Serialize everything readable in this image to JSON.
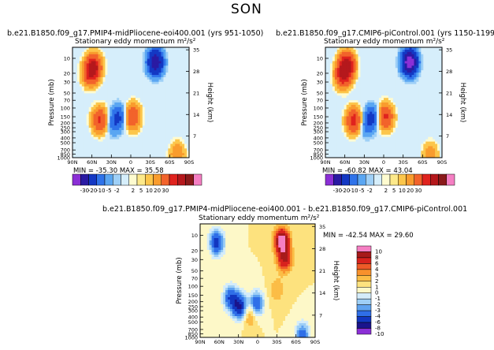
{
  "title": "SON",
  "colors": {
    "scale_abs": [
      "#8b2fd6",
      "#2a1aa3",
      "#1338c4",
      "#2f73ea",
      "#5aa6f2",
      "#9fd0f7",
      "#d6eefb",
      "#fefbd0",
      "#fde98a",
      "#fcc64b",
      "#f99c2e",
      "#f2632b",
      "#e0231e",
      "#b5181c",
      "#8a1a1a",
      "#f57fc3"
    ],
    "scale_diff": [
      "#8b2fd6",
      "#1a148c",
      "#1237c0",
      "#2f6fe8",
      "#5fa3f0",
      "#9ecff6",
      "#d4ecfa",
      "#fdf8c8",
      "#fde27e",
      "#fbbd46",
      "#f8912c",
      "#ee5a28",
      "#d8221e",
      "#a71a1a",
      "#f57fc3"
    ]
  },
  "chart_data": [
    {
      "type": "heatmap",
      "title": "b.e21.B1850.f09_g17.PMIP4-midPliocene-eoi400.001 (yrs 951-1050)",
      "subtitle": "Stationary eddy momentum m²/s²",
      "ylabel": "Pressure (mb)",
      "ylabel_right": "Height (km)",
      "x_ticks": [
        "90N",
        "60N",
        "30N",
        "0",
        "30S",
        "60S",
        "90S"
      ],
      "y_ticks": [
        "10",
        "20",
        "30",
        "50",
        "70",
        "100",
        "150",
        "200",
        "250",
        "300",
        "400",
        "500",
        "700",
        "850",
        "1000"
      ],
      "y_ticks_right": [
        "35",
        "28",
        "21",
        "14",
        "7"
      ],
      "stats": "MIN = -35.30   MAX = 35.58",
      "min": -35.3,
      "max": 35.58,
      "features": [
        {
          "lat": 57,
          "p": 15,
          "value": 30
        },
        {
          "lat": 63,
          "p": 20,
          "value": 20
        },
        {
          "lat": -38,
          "p": 12,
          "value": -30
        },
        {
          "lat": 48,
          "p": 175,
          "value": 22
        },
        {
          "lat": -3,
          "p": 150,
          "value": 20
        },
        {
          "lat": 18,
          "p": 150,
          "value": -10
        },
        {
          "lat": 28,
          "p": 200,
          "value": -6
        },
        {
          "lat": -72,
          "p": 870,
          "value": 10
        }
      ]
    },
    {
      "type": "heatmap",
      "title": "b.e21.B1850.f09_g17.CMIP6-piControl.001 (yrs 1150-1199)",
      "subtitle": "Stationary eddy momentum m²/s²",
      "ylabel": "Pressure (mb)",
      "ylabel_right": "Height (km)",
      "x_ticks": [
        "90N",
        "60N",
        "30N",
        "0",
        "30S",
        "60S",
        "90S"
      ],
      "y_ticks": [
        "10",
        "20",
        "30",
        "50",
        "70",
        "100",
        "150",
        "200",
        "250",
        "300",
        "400",
        "500",
        "700",
        "850",
        "1000"
      ],
      "y_ticks_right": [
        "35",
        "28",
        "21",
        "14",
        "7"
      ],
      "stats": "MIN = -60.82   MAX = 43.04",
      "min": -60.82,
      "max": 43.04,
      "features": [
        {
          "lat": 57,
          "p": 14,
          "value": 40
        },
        {
          "lat": 63,
          "p": 22,
          "value": 25
        },
        {
          "lat": -40,
          "p": 12,
          "value": -40
        },
        {
          "lat": 46,
          "p": 180,
          "value": 26
        },
        {
          "lat": -3,
          "p": 150,
          "value": 22
        },
        {
          "lat": 18,
          "p": 160,
          "value": -12
        },
        {
          "lat": 30,
          "p": 220,
          "value": -6
        },
        {
          "lat": -72,
          "p": 880,
          "value": 8
        }
      ]
    },
    {
      "type": "heatmap",
      "title": "b.e21.B1850.f09_g17.PMIP4-midPliocene-eoi400.001 - b.e21.B1850.f09_g17.CMIP6-piControl.001",
      "subtitle": "Stationary eddy momentum m²/s²",
      "ylabel": "Pressure (mb)",
      "ylabel_right": "Height (km)",
      "x_ticks": [
        "90N",
        "60N",
        "30N",
        "0",
        "30S",
        "60S",
        "90S"
      ],
      "y_ticks": [
        "10",
        "20",
        "30",
        "50",
        "70",
        "100",
        "150",
        "200",
        "250",
        "300",
        "400",
        "500",
        "700",
        "850",
        "1000"
      ],
      "y_ticks_right": [
        "35",
        "28",
        "21",
        "14",
        "7"
      ],
      "stats": "MIN = -42.54   MAX = 29.60",
      "min": -42.54,
      "max": 29.6,
      "features": [
        {
          "lat": 64,
          "p": 14,
          "value": -7
        },
        {
          "lat": -38,
          "p": 13,
          "value": 10
        },
        {
          "lat": -42,
          "p": 30,
          "value": 6
        },
        {
          "lat": 42,
          "p": 170,
          "value": -6
        },
        {
          "lat": 28,
          "p": 250,
          "value": -8
        },
        {
          "lat": 2,
          "p": 220,
          "value": -6
        },
        {
          "lat": 12,
          "p": 350,
          "value": 3
        },
        {
          "lat": -30,
          "p": 120,
          "value": 2
        },
        {
          "lat": -70,
          "p": 900,
          "value": -5
        }
      ]
    }
  ],
  "colorbar_abs": {
    "labels": [
      "-30",
      "-20",
      "-10",
      "-5",
      "-2",
      "2",
      "5",
      "10",
      "20",
      "30"
    ]
  },
  "colorbar_diff": {
    "labels": [
      "10",
      "8",
      "6",
      "4",
      "3",
      "2",
      "1",
      "0",
      "-1",
      "-2",
      "-3",
      "-4",
      "-6",
      "-8",
      "-10"
    ]
  }
}
